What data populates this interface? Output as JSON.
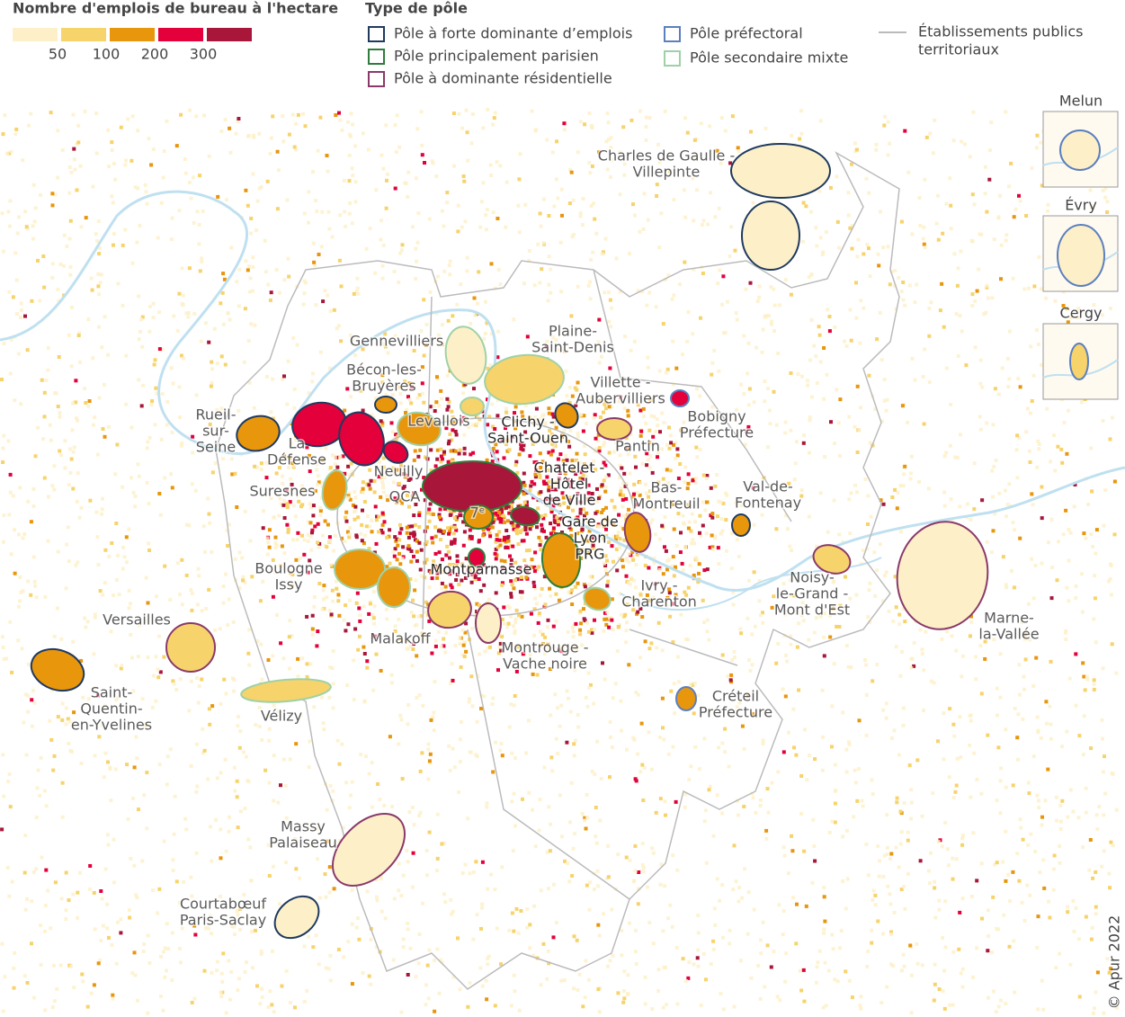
{
  "legend_density": {
    "title": "Nombre d'emplois de bureau à l'hectare",
    "colors": [
      "#fdf0c8",
      "#f7d36b",
      "#e8960c",
      "#e4003a",
      "#a8173a"
    ],
    "ticks": [
      "50",
      "100",
      "200",
      "300"
    ]
  },
  "legend_type": {
    "title": "Type de pôle",
    "items": [
      {
        "label": "Pôle à forte dominante d’emplois",
        "color": "#1f3a5f"
      },
      {
        "label": "Pôle principalement parisien",
        "color": "#2e7d3a"
      },
      {
        "label": "Pôle à dominante résidentielle",
        "color": "#8a3a6a"
      },
      {
        "label": "Pôle préfectoral",
        "color": "#5b7fbf"
      },
      {
        "label": "Pôle secondaire mixte",
        "color": "#9fd1a7"
      }
    ],
    "boundary": {
      "label": [
        "Établissements publics",
        "territoriaux"
      ],
      "color": "#bbbbbb"
    }
  },
  "labels": [
    [
      "Charles de Gaulle -",
      "Villepinte"
    ],
    [
      "Gennevilliers"
    ],
    [
      "Plaine-",
      "Saint-Denis"
    ],
    [
      "Bécon-les-",
      "Bruyères"
    ],
    [
      "Villette -",
      "Aubervilliers"
    ],
    [
      "Levallois"
    ],
    [
      "Clichy -",
      "Saint-Ouen"
    ],
    [
      "Rueil-",
      "sur-",
      "Seine"
    ],
    [
      "La",
      "Défense"
    ],
    [
      "Bobigny",
      "Préfecture"
    ],
    [
      "Pantin"
    ],
    [
      "Neuilly"
    ],
    [
      "Chatelet -",
      "Hôtel",
      "de Ville"
    ],
    [
      "Suresnes"
    ],
    [
      "QCA"
    ],
    [
      "7ᵉ"
    ],
    [
      "Bas-",
      "Montreuil"
    ],
    [
      "Val-de-",
      "Fontenay"
    ],
    [
      "Gare de",
      "Lyon",
      "PRG"
    ],
    [
      "Boulogne",
      "Issy"
    ],
    [
      "Montparnasse"
    ],
    [
      "Noisy-",
      "le-Grand -",
      "Mont d'Est"
    ],
    [
      "Ivry -",
      "Charenton"
    ],
    [
      "Versailles"
    ],
    [
      "Marne-",
      "la-Vallée"
    ],
    [
      "Malakoff"
    ],
    [
      "Montrouge -",
      "Vache noire"
    ],
    [
      "Saint-",
      "Quentin-",
      "en-Yvelines"
    ],
    [
      "Vélizy"
    ],
    [
      "Créteil",
      "Préfecture"
    ],
    [
      "Massy",
      "Palaiseau"
    ],
    [
      "Courtabœuf",
      "Paris-Saclay"
    ]
  ],
  "insets": [
    {
      "title": "Melun"
    },
    {
      "title": "Évry"
    },
    {
      "title": "Cergy"
    }
  ],
  "credit": "© Apur 2022"
}
